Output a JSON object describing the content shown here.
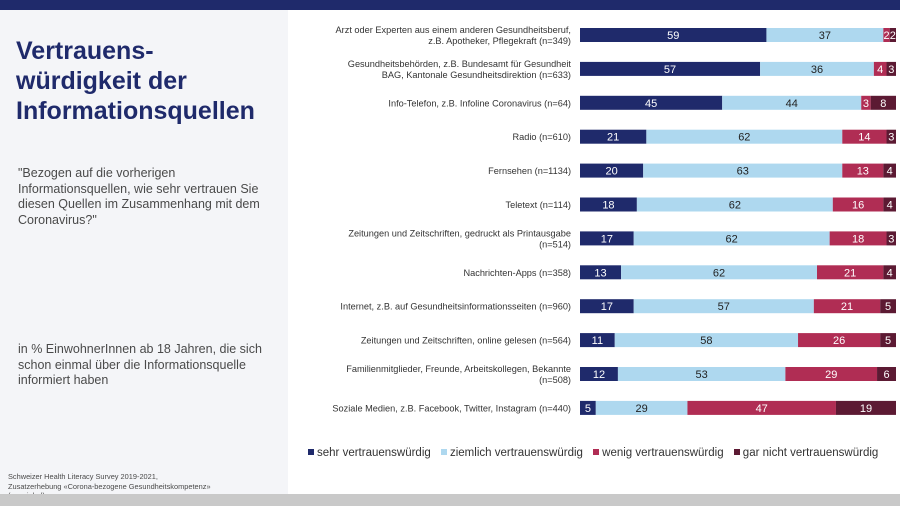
{
  "left_panel": {
    "title": "Vertrauens-\nwürdigkeit der\nInformationsquellen",
    "question": "\"Bezogen auf die vorherigen Informationsquellen, wie sehr vertrauen Sie diesen Quellen im Zusammenhang mit dem Coronavirus?\"",
    "population": "in % EinwohnerInnen ab 18 Jahren, die sich schon einmal über die Informationsquelle informiert haben",
    "source": "Schweizer Health Literacy Survey  2019-2021,\nZusatzerhebung «Corona-bezogene  Gesundheitskompetenz»\n(n variabel)"
  },
  "colors": {
    "sehr": "#1f2a6b",
    "ziemlich": "#aed8ef",
    "wenig": "#b02d54",
    "gar_nicht": "#5c1a33",
    "top_bar": "#1f2a6b"
  },
  "chart_data": {
    "type": "bar",
    "orientation": "horizontal",
    "stacked": true,
    "unit": "%",
    "xlim": [
      0,
      100
    ],
    "categories": [
      [
        "Arzt oder Experten aus einem anderen Gesundheitsberuf,",
        "z.B. Apotheker, Pflegekraft (n=349)"
      ],
      [
        "Gesundheitsbehörden, z.B. Bundesamt für Gesundheit",
        "BAG, Kantonale Gesundheitsdirektion (n=633)"
      ],
      [
        "Info-Telefon, z.B. Infoline Coronavirus (n=64)"
      ],
      [
        "Radio (n=610)"
      ],
      [
        "Fernsehen (n=1134)"
      ],
      [
        "Teletext (n=114)"
      ],
      [
        "Zeitungen und Zeitschriften, gedruckt als Printausgabe",
        "(n=514)"
      ],
      [
        "Nachrichten-Apps (n=358)"
      ],
      [
        "Internet, z.B. auf Gesundheitsinformationsseiten (n=960)"
      ],
      [
        "Zeitungen und Zeitschriften, online gelesen (n=564)"
      ],
      [
        "Familienmitglieder, Freunde, Arbeitskollegen, Bekannte",
        "(n=508)"
      ],
      [
        "Soziale Medien, z.B. Facebook, Twitter, Instagram (n=440)"
      ]
    ],
    "series": [
      {
        "name": "sehr vertrauenswürdig",
        "color_key": "sehr",
        "values": [
          59,
          57,
          45,
          21,
          20,
          18,
          17,
          13,
          17,
          11,
          12,
          5
        ]
      },
      {
        "name": "ziemlich vertrauenswürdig",
        "color_key": "ziemlich",
        "values": [
          37,
          36,
          44,
          62,
          63,
          62,
          62,
          62,
          57,
          58,
          53,
          29
        ]
      },
      {
        "name": "wenig vertrauenswürdig",
        "color_key": "wenig",
        "values": [
          2,
          4,
          3,
          14,
          13,
          16,
          18,
          21,
          21,
          26,
          29,
          47
        ]
      },
      {
        "name": "gar nicht vertrauenswürdig",
        "color_key": "gar_nicht",
        "values": [
          2,
          3,
          8,
          3,
          4,
          4,
          3,
          4,
          5,
          5,
          6,
          19
        ]
      }
    ],
    "legend_position": "bottom"
  }
}
